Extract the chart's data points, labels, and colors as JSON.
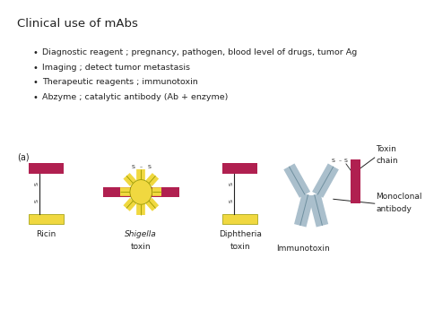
{
  "title": "Clinical use of mAbs",
  "bullets": [
    "Diagnostic reagent ; pregnancy, pathogen, blood level of drugs, tumor Ag",
    "Imaging ; detect tumor metastasis",
    "Therapeutic reagents ; immunotoxin",
    "Abzyme ; catalytic antibody (Ab + enzyme)"
  ],
  "red_color": "#B02050",
  "yellow_color": "#F0D840",
  "light_blue_color": "#AABFCC",
  "bg_color": "#FFFFFF",
  "text_color": "#222222",
  "label_a": "(a)"
}
